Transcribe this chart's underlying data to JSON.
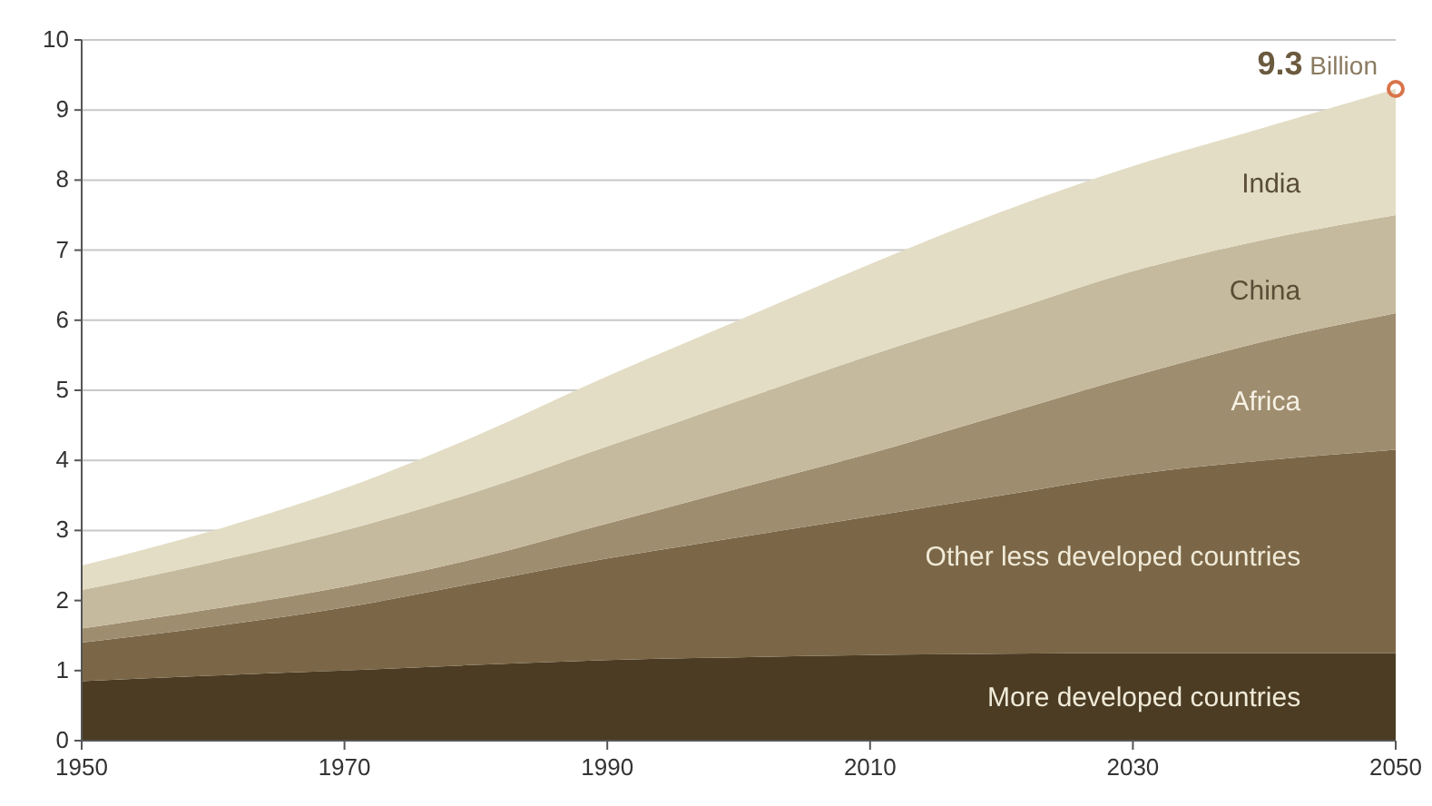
{
  "chart_data": {
    "type": "area",
    "stacked": true,
    "x": [
      1950,
      1960,
      1970,
      1980,
      1990,
      2000,
      2010,
      2020,
      2030,
      2040,
      2050
    ],
    "series": [
      {
        "name": "More developed countries",
        "color": "#4b3c23",
        "values": [
          0.85,
          0.93,
          1.0,
          1.08,
          1.15,
          1.19,
          1.22,
          1.24,
          1.25,
          1.25,
          1.25
        ]
      },
      {
        "name": "Other less developed countries",
        "color": "#7b6747",
        "values": [
          0.55,
          0.7,
          0.9,
          1.17,
          1.45,
          1.71,
          1.98,
          2.26,
          2.55,
          2.75,
          2.9
        ]
      },
      {
        "name": "Africa",
        "color": "#9f8d6f",
        "values": [
          0.2,
          0.25,
          0.3,
          0.35,
          0.5,
          0.7,
          0.9,
          1.15,
          1.4,
          1.7,
          1.95
        ]
      },
      {
        "name": "China",
        "color": "#c5ba9d",
        "values": [
          0.55,
          0.67,
          0.8,
          0.95,
          1.1,
          1.25,
          1.4,
          1.45,
          1.5,
          1.45,
          1.4
        ]
      },
      {
        "name": "India",
        "color": "#e3ddc5",
        "values": [
          0.35,
          0.45,
          0.6,
          0.8,
          1.0,
          1.15,
          1.3,
          1.45,
          1.5,
          1.6,
          1.8
        ]
      }
    ],
    "xlim": [
      1950,
      2050
    ],
    "xticks": [
      1950,
      1970,
      1990,
      2010,
      2030,
      2050
    ],
    "ylim": [
      0,
      10
    ],
    "yticks": [
      0,
      1,
      2,
      3,
      4,
      5,
      6,
      7,
      8,
      9,
      10
    ],
    "grid": "y",
    "legend": false,
    "annotations": [
      {
        "text": "9.3 Billion",
        "x": 2050,
        "y": 9.3
      }
    ]
  }
}
